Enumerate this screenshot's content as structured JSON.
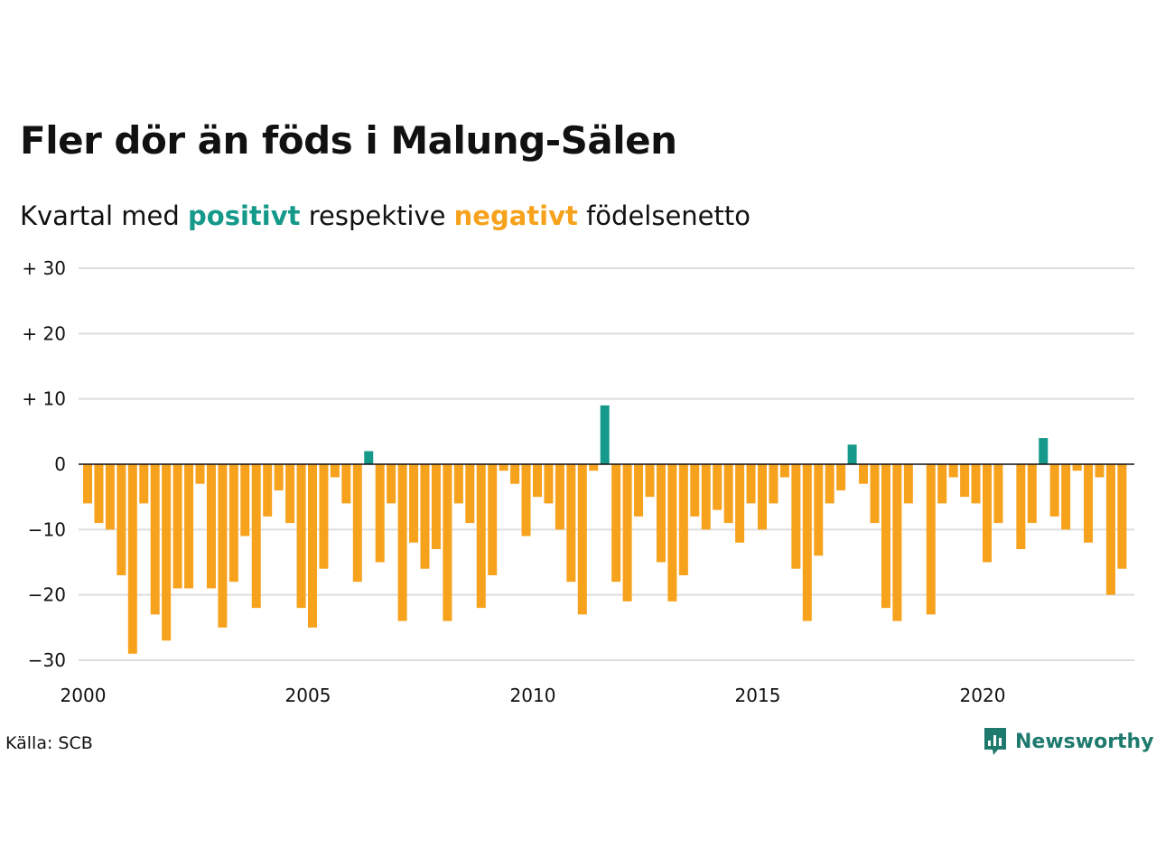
{
  "header": {
    "title": "Fler dör än föds i Malung-Sälen",
    "subtitle_prefix": "Kvartal med ",
    "subtitle_positive": "positivt",
    "subtitle_middle": " respektive ",
    "subtitle_negative": "negativt",
    "subtitle_suffix": " födelsenetto"
  },
  "colors": {
    "positive": "#15998a",
    "negative": "#f7a21c",
    "grid": "#dddddd",
    "brand": "#1f7a6e"
  },
  "footer": {
    "source": "Källa: SCB",
    "brand": "Newsworthy",
    "logo_icon": "newsworthy-logo-icon"
  },
  "chart_data": {
    "type": "bar",
    "xlabel": "",
    "ylabel": "",
    "x_start": "2000 Q1",
    "period": "quarter",
    "xlim": [
      2000,
      2023.25
    ],
    "ylim": [
      -30,
      30
    ],
    "y_ticks": [
      30,
      20,
      10,
      0,
      -10,
      -20,
      -30
    ],
    "y_tick_labels": [
      "+ 30",
      "+ 20",
      "+ 10",
      "0",
      "−10",
      "−20",
      "−30"
    ],
    "x_ticks": [
      2000,
      2005,
      2010,
      2015,
      2020
    ],
    "x_tick_labels": [
      "2000",
      "2005",
      "2010",
      "2015",
      "2020"
    ],
    "grid": true,
    "values": [
      -6,
      -9,
      -10,
      -17,
      -29,
      -6,
      -23,
      -27,
      -19,
      -19,
      -3,
      -19,
      -25,
      -18,
      -11,
      -22,
      -8,
      -4,
      -9,
      -22,
      -25,
      -16,
      -2,
      -6,
      -18,
      2,
      -15,
      -6,
      -24,
      -12,
      -16,
      -13,
      -24,
      -6,
      -9,
      -22,
      -17,
      -1,
      -3,
      -11,
      -5,
      -6,
      -10,
      -18,
      -23,
      -1,
      9,
      -18,
      -21,
      -8,
      -5,
      -15,
      -21,
      -17,
      -8,
      -10,
      -7,
      -9,
      -12,
      -6,
      -10,
      -6,
      -2,
      -16,
      -24,
      -14,
      -6,
      -4,
      3,
      -3,
      -9,
      -22,
      -24,
      -6,
      0,
      -23,
      -6,
      -2,
      -5,
      -6,
      -15,
      -9,
      0,
      -13,
      -9,
      4,
      -8,
      -10,
      -1,
      -12,
      -2,
      -20,
      -16
    ]
  }
}
